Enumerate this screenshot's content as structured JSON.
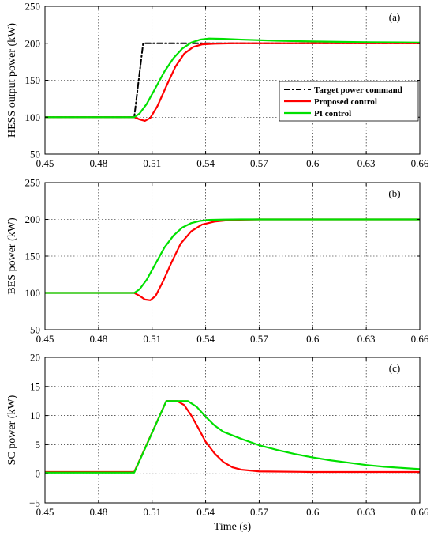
{
  "chart_data": [
    {
      "type": "line",
      "panel_label": "(a)",
      "ylabel": "HESS output power (kW)",
      "xlim": [
        0.45,
        0.66
      ],
      "ylim": [
        50,
        250
      ],
      "xticks": [
        0.45,
        0.48,
        0.51,
        0.54,
        0.57,
        0.6,
        0.63,
        0.66
      ],
      "xtick_labels": [
        "0.45",
        "0.48",
        "0.51",
        "0.54",
        "0.57",
        "0.6",
        "0.63",
        "0.66"
      ],
      "yticks": [
        50,
        100,
        150,
        200,
        250
      ],
      "ytick_labels": [
        "50",
        "100",
        "150",
        "200",
        "250"
      ],
      "grid": true,
      "legend_position": "center-right",
      "series": [
        {
          "name": "Target power command",
          "color": "#000000",
          "dash": "dashdot",
          "x": [
            0.45,
            0.5,
            0.505,
            0.66
          ],
          "y": [
            100,
            100,
            200,
            200
          ]
        },
        {
          "name": "Proposed control",
          "color": "#ff0000",
          "x": [
            0.45,
            0.5,
            0.503,
            0.506,
            0.509,
            0.513,
            0.518,
            0.523,
            0.528,
            0.533,
            0.538,
            0.545,
            0.555,
            0.57,
            0.66
          ],
          "y": [
            100,
            100,
            97,
            95,
            99,
            115,
            142,
            168,
            186,
            195,
            198.5,
            199.5,
            200,
            200,
            200
          ]
        },
        {
          "name": "PI control",
          "color": "#00e000",
          "x": [
            0.45,
            0.5,
            0.503,
            0.507,
            0.512,
            0.517,
            0.522,
            0.527,
            0.532,
            0.537,
            0.542,
            0.55,
            0.56,
            0.58,
            0.6,
            0.63,
            0.66
          ],
          "y": [
            100,
            100,
            105,
            118,
            140,
            162,
            180,
            193,
            201,
            205,
            206.5,
            206,
            205,
            203.5,
            202.5,
            201.5,
            201
          ]
        }
      ]
    },
    {
      "type": "line",
      "panel_label": "(b)",
      "ylabel": "BES power (kW)",
      "xlim": [
        0.45,
        0.66
      ],
      "ylim": [
        50,
        250
      ],
      "xticks": [
        0.45,
        0.48,
        0.51,
        0.54,
        0.57,
        0.6,
        0.63,
        0.66
      ],
      "xtick_labels": [
        "0.45",
        "0.48",
        "0.51",
        "0.54",
        "0.57",
        "0.6",
        "0.63",
        "0.66"
      ],
      "yticks": [
        50,
        100,
        150,
        200,
        250
      ],
      "ytick_labels": [
        "50",
        "100",
        "150",
        "200",
        "250"
      ],
      "grid": true,
      "series": [
        {
          "color": "#ff0000",
          "x": [
            0.45,
            0.5,
            0.503,
            0.506,
            0.509,
            0.512,
            0.516,
            0.521,
            0.526,
            0.532,
            0.538,
            0.545,
            0.555,
            0.57,
            0.66
          ],
          "y": [
            100,
            100,
            96,
            91,
            90,
            96,
            115,
            142,
            167,
            184,
            193,
            197,
            199.5,
            200,
            200
          ]
        },
        {
          "color": "#00e000",
          "x": [
            0.45,
            0.5,
            0.503,
            0.507,
            0.512,
            0.517,
            0.522,
            0.527,
            0.532,
            0.537,
            0.542,
            0.55,
            0.56,
            0.57,
            0.66
          ],
          "y": [
            100,
            100,
            105,
            118,
            140,
            162,
            178,
            189,
            195,
            198,
            199.3,
            199.8,
            200,
            200,
            200
          ]
        }
      ]
    },
    {
      "type": "line",
      "panel_label": "(c)",
      "ylabel": "SC power (kW)",
      "xlabel": "Time (s)",
      "xlim": [
        0.45,
        0.66
      ],
      "ylim": [
        -5,
        20
      ],
      "xticks": [
        0.45,
        0.48,
        0.51,
        0.54,
        0.57,
        0.6,
        0.63,
        0.66
      ],
      "xtick_labels": [
        "0.45",
        "0.48",
        "0.51",
        "0.54",
        "0.57",
        "0.6",
        "0.63",
        "0.66"
      ],
      "yticks": [
        -5,
        0,
        5,
        10,
        15,
        20
      ],
      "ytick_labels": [
        "−5",
        "0",
        "5",
        "10",
        "15",
        "20"
      ],
      "grid": true,
      "series": [
        {
          "color": "#ff0000",
          "x": [
            0.45,
            0.5,
            0.518,
            0.524,
            0.528,
            0.532,
            0.536,
            0.54,
            0.545,
            0.55,
            0.555,
            0.56,
            0.57,
            0.6,
            0.66
          ],
          "y": [
            0.3,
            0.3,
            12.5,
            12.5,
            11.8,
            10.0,
            7.8,
            5.5,
            3.5,
            2.0,
            1.1,
            0.7,
            0.4,
            0.3,
            0.3
          ]
        },
        {
          "color": "#00e000",
          "x": [
            0.45,
            0.5,
            0.518,
            0.53,
            0.535,
            0.54,
            0.545,
            0.55,
            0.56,
            0.57,
            0.58,
            0.59,
            0.6,
            0.61,
            0.62,
            0.63,
            0.64,
            0.65,
            0.66
          ],
          "y": [
            0.2,
            0.2,
            12.5,
            12.5,
            11.5,
            9.8,
            8.3,
            7.2,
            6.0,
            4.9,
            4.1,
            3.4,
            2.8,
            2.3,
            1.9,
            1.5,
            1.2,
            1.0,
            0.8
          ]
        }
      ]
    }
  ]
}
